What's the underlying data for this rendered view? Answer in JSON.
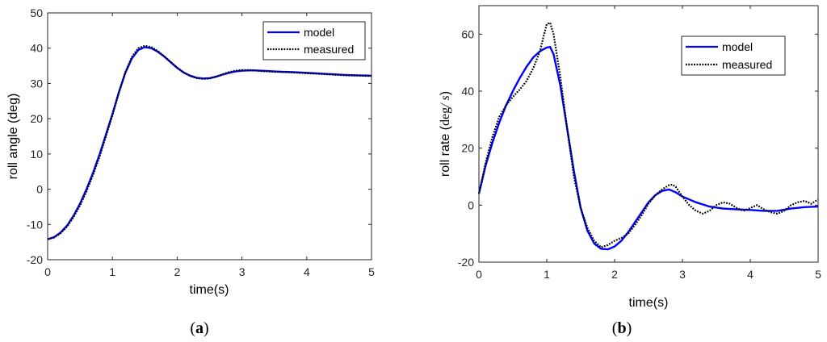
{
  "chart_data": [
    {
      "type": "line",
      "caption_open": "(",
      "caption_letter": "a",
      "caption_close": ")",
      "xlabel": "time(s)",
      "ylabel": "roll angle (deg)",
      "xlim": [
        0,
        5
      ],
      "ylim": [
        -20,
        50
      ],
      "xticks": [
        0,
        1,
        2,
        3,
        4,
        5
      ],
      "yticks": [
        -20,
        -10,
        0,
        10,
        20,
        30,
        40,
        50
      ],
      "grid": false,
      "legend_position": "top-right",
      "series": [
        {
          "name": "model",
          "color": "#0000ff",
          "style": "solid",
          "x": [
            0,
            0.1,
            0.2,
            0.3,
            0.4,
            0.5,
            0.6,
            0.7,
            0.8,
            0.9,
            1.0,
            1.1,
            1.2,
            1.3,
            1.4,
            1.5,
            1.6,
            1.7,
            1.8,
            1.9,
            2.0,
            2.1,
            2.2,
            2.3,
            2.4,
            2.5,
            2.6,
            2.7,
            2.8,
            2.9,
            3.0,
            3.1,
            3.2,
            3.3,
            3.4,
            3.5,
            3.6,
            3.8,
            4.0,
            4.2,
            4.4,
            4.6,
            4.8,
            5.0
          ],
          "y": [
            -14.2,
            -13.6,
            -12.3,
            -10.3,
            -7.5,
            -4.1,
            0.0,
            4.6,
            9.8,
            15.5,
            21.3,
            27.5,
            33.0,
            37.1,
            39.5,
            40.3,
            40.0,
            39.0,
            37.6,
            36.0,
            34.4,
            33.1,
            32.2,
            31.6,
            31.4,
            31.5,
            31.9,
            32.5,
            33.0,
            33.4,
            33.6,
            33.7,
            33.7,
            33.6,
            33.5,
            33.4,
            33.3,
            33.2,
            33.0,
            32.8,
            32.6,
            32.4,
            32.3,
            32.2
          ]
        },
        {
          "name": "measured",
          "color": "#000000",
          "style": "dotted",
          "x": [
            0,
            0.1,
            0.2,
            0.3,
            0.4,
            0.5,
            0.6,
            0.7,
            0.8,
            0.9,
            1.0,
            1.1,
            1.2,
            1.3,
            1.4,
            1.5,
            1.6,
            1.7,
            1.8,
            1.9,
            2.0,
            2.1,
            2.2,
            2.3,
            2.4,
            2.5,
            2.6,
            2.7,
            2.8,
            2.9,
            3.0,
            3.1,
            3.2,
            3.3,
            3.4,
            3.5,
            3.6,
            3.8,
            4.0,
            4.2,
            4.4,
            4.6,
            4.8,
            5.0
          ],
          "y": [
            -14.2,
            -13.7,
            -12.5,
            -10.6,
            -7.9,
            -4.6,
            -0.6,
            4.0,
            9.2,
            15.0,
            21.0,
            27.4,
            33.2,
            37.5,
            40.0,
            40.7,
            40.3,
            39.2,
            37.7,
            36.1,
            34.5,
            33.1,
            32.1,
            31.5,
            31.3,
            31.4,
            31.9,
            32.6,
            33.2,
            33.6,
            33.8,
            33.8,
            33.7,
            33.5,
            33.4,
            33.3,
            33.3,
            33.1,
            32.9,
            32.7,
            32.5,
            32.3,
            32.2,
            32.1
          ]
        }
      ]
    },
    {
      "type": "line",
      "caption_open": "(",
      "caption_letter": "b",
      "caption_close": ")",
      "xlabel": "time(s)",
      "ylabel_main": "roll rate (",
      "ylabel_unit_a": "deg",
      "ylabel_unit_b": "/ s",
      "ylabel_close": ")",
      "xlim": [
        0,
        5
      ],
      "ylim": [
        -20,
        70
      ],
      "xticks": [
        0,
        1,
        2,
        3,
        4,
        5
      ],
      "yticks": [
        -20,
        0,
        20,
        40,
        60
      ],
      "grid": false,
      "legend_position": "top-right",
      "series": [
        {
          "name": "model",
          "color": "#0000ff",
          "style": "solid",
          "x": [
            0,
            0.1,
            0.2,
            0.3,
            0.4,
            0.5,
            0.6,
            0.7,
            0.8,
            0.9,
            1.0,
            1.05,
            1.1,
            1.2,
            1.3,
            1.4,
            1.5,
            1.6,
            1.7,
            1.8,
            1.9,
            2.0,
            2.1,
            2.2,
            2.3,
            2.4,
            2.5,
            2.6,
            2.7,
            2.8,
            2.9,
            3.0,
            3.2,
            3.4,
            3.6,
            3.8,
            4.0,
            4.2,
            4.4,
            4.6,
            4.8,
            5.0
          ],
          "y": [
            4,
            14,
            22,
            29,
            35,
            40,
            44.5,
            48.5,
            51.8,
            54,
            55.3,
            55.5,
            53,
            42,
            27,
            12,
            -1,
            -9,
            -13.5,
            -15.3,
            -15.5,
            -14.5,
            -12.5,
            -9.5,
            -6,
            -2.5,
            1,
            3.5,
            5,
            5.5,
            4.5,
            3,
            1,
            -0.5,
            -1.2,
            -1.5,
            -1.7,
            -2,
            -2,
            -1.2,
            -0.7,
            -0.5
          ]
        },
        {
          "name": "measured",
          "color": "#000000",
          "style": "dotted",
          "x": [
            0,
            0.1,
            0.2,
            0.3,
            0.4,
            0.5,
            0.6,
            0.7,
            0.8,
            0.9,
            0.95,
            1.0,
            1.05,
            1.1,
            1.2,
            1.3,
            1.4,
            1.5,
            1.6,
            1.7,
            1.8,
            1.9,
            2.0,
            2.1,
            2.2,
            2.3,
            2.4,
            2.5,
            2.6,
            2.7,
            2.8,
            2.85,
            2.9,
            3.0,
            3.1,
            3.2,
            3.3,
            3.4,
            3.5,
            3.6,
            3.7,
            3.8,
            3.9,
            4.0,
            4.1,
            4.2,
            4.3,
            4.4,
            4.5,
            4.6,
            4.7,
            4.8,
            4.9,
            5.0
          ],
          "y": [
            4,
            15,
            24,
            31,
            35,
            38,
            40.5,
            43.5,
            48,
            54,
            59,
            63.5,
            64,
            60,
            45,
            27,
            10,
            -1,
            -8,
            -12.5,
            -14.8,
            -14,
            -12.5,
            -11.5,
            -10,
            -7,
            -3.5,
            0.5,
            3.5,
            5.5,
            7,
            7.2,
            6.5,
            3,
            0,
            -2,
            -3,
            -2,
            0,
            1,
            0.5,
            -1,
            -2,
            -1,
            0,
            -1.5,
            -2.5,
            -3,
            -2,
            0,
            1,
            1.5,
            0.5,
            2
          ]
        }
      ]
    }
  ]
}
